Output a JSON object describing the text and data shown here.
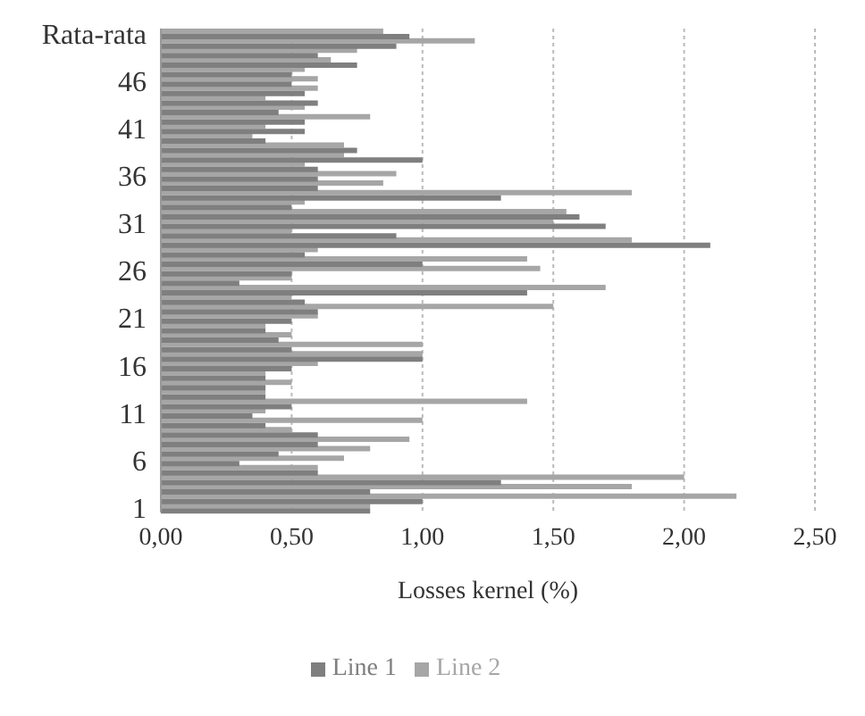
{
  "chart_data": {
    "type": "bar",
    "orientation": "horizontal",
    "xlabel": "Losses kernel (%)",
    "categories": [
      "Rata-rata",
      null,
      null,
      null,
      null,
      "46",
      null,
      null,
      null,
      null,
      "41",
      null,
      null,
      null,
      null,
      "36",
      null,
      null,
      null,
      null,
      "31",
      null,
      null,
      null,
      null,
      "26",
      null,
      null,
      null,
      null,
      "21",
      null,
      null,
      null,
      null,
      "16",
      null,
      null,
      null,
      null,
      "11",
      null,
      null,
      null,
      null,
      "6",
      null,
      null,
      null,
      null,
      "1"
    ],
    "series": [
      {
        "name": "Line 2",
        "color": "#a6a6a6",
        "values": [
          0.85,
          1.2,
          0.75,
          0.65,
          0.55,
          0.6,
          0.6,
          0.4,
          0.55,
          0.8,
          0.4,
          0.35,
          0.7,
          0.7,
          0.55,
          0.9,
          0.85,
          1.8,
          0.55,
          1.55,
          1.5,
          0.5,
          1.8,
          0.6,
          1.4,
          1.45,
          0.5,
          1.7,
          0.5,
          1.5,
          0.6,
          0.4,
          0.5,
          1.0,
          1.0,
          0.6,
          0.4,
          0.5,
          0.4,
          1.4,
          0.4,
          1.0,
          0.5,
          0.95,
          0.8,
          0.7,
          0.6,
          2.0,
          1.8,
          2.2,
          0.8
        ]
      },
      {
        "name": "Line 1",
        "color": "#7f7f7f",
        "values": [
          0.95,
          0.9,
          0.6,
          0.75,
          0.5,
          0.5,
          0.55,
          0.6,
          0.45,
          0.55,
          0.55,
          0.4,
          0.75,
          1.0,
          0.6,
          0.6,
          0.6,
          1.3,
          0.5,
          1.6,
          1.7,
          0.9,
          2.1,
          0.55,
          1.0,
          0.5,
          0.3,
          1.4,
          0.55,
          0.6,
          0.5,
          0.4,
          0.45,
          0.5,
          1.0,
          0.5,
          0.4,
          0.4,
          0.4,
          0.5,
          0.35,
          0.4,
          0.6,
          0.6,
          0.45,
          0.3,
          0.6,
          1.3,
          0.8,
          1.0,
          0.8
        ]
      }
    ],
    "xlim": [
      0,
      2.5
    ],
    "xticks": [
      {
        "value": 0,
        "label": "0,00"
      },
      {
        "value": 0.5,
        "label": "0,50"
      },
      {
        "value": 1,
        "label": "1,00"
      },
      {
        "value": 1.5,
        "label": "1,50"
      },
      {
        "value": 2,
        "label": "2,00"
      },
      {
        "value": 2.5,
        "label": "2,50"
      }
    ],
    "grid": "x",
    "legend": "bottom"
  }
}
